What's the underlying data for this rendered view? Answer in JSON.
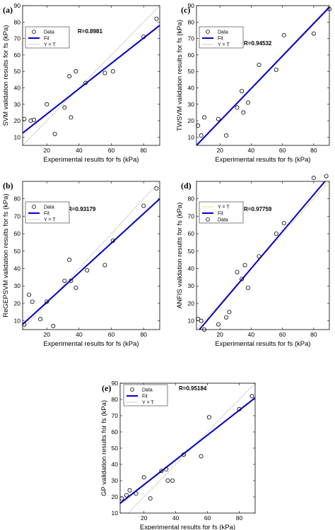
{
  "chart_data": [
    {
      "type": "scatter",
      "panel_letter": "(a)",
      "xlabel": "Experimental results for fs (kPa)",
      "ylabel": "SVM validation results for fs (kPa)",
      "xlim": [
        5,
        90
      ],
      "ylim": [
        5,
        90
      ],
      "xticks": [
        20,
        40,
        60,
        80
      ],
      "yticks": [
        10,
        20,
        30,
        40,
        50,
        60,
        70,
        80,
        90
      ],
      "r_text": "R=0.8981",
      "legend": [
        "Data",
        "Fit",
        "Y = T"
      ],
      "legend_position": "top-left",
      "fit": [
        [
          5,
          12.5
        ],
        [
          90,
          78
        ]
      ],
      "points": [
        [
          6,
          21
        ],
        [
          10,
          20
        ],
        [
          12,
          20.5
        ],
        [
          20,
          30
        ],
        [
          25,
          12
        ],
        [
          31,
          28
        ],
        [
          34,
          47
        ],
        [
          35,
          22
        ],
        [
          38,
          50
        ],
        [
          44,
          43
        ],
        [
          56,
          49
        ],
        [
          61,
          50
        ],
        [
          80,
          71
        ],
        [
          88,
          82
        ]
      ]
    },
    {
      "type": "scatter",
      "panel_letter": "(c)",
      "xlabel": "Experimental results for fs (kPa)",
      "ylabel": "TWSVM validation results for fs (kPa)",
      "xlim": [
        5,
        90
      ],
      "ylim": [
        5,
        90
      ],
      "xticks": [
        20,
        40,
        60,
        80
      ],
      "yticks": [
        10,
        20,
        30,
        40,
        50,
        60,
        70,
        80,
        90
      ],
      "r_text": "R=0.94532",
      "legend": [
        "Data",
        "Fit",
        "Y = T"
      ],
      "legend_position": "top-left",
      "fit": [
        [
          5,
          5
        ],
        [
          90,
          89
        ]
      ],
      "points": [
        [
          6,
          17
        ],
        [
          8,
          11
        ],
        [
          10,
          22
        ],
        [
          19,
          21
        ],
        [
          24,
          11
        ],
        [
          31,
          28
        ],
        [
          34,
          38
        ],
        [
          35,
          25
        ],
        [
          38,
          31
        ],
        [
          45,
          54
        ],
        [
          56,
          51
        ],
        [
          61,
          72
        ],
        [
          80,
          73
        ],
        [
          90,
          88
        ]
      ]
    },
    {
      "type": "scatter",
      "panel_letter": "(b)",
      "xlabel": "Experimental results for fs (kPa)",
      "ylabel": "ReGEPSVM validation results for fs (kPa)",
      "xlim": [
        5,
        90
      ],
      "ylim": [
        5,
        90
      ],
      "xticks": [
        20,
        40,
        60,
        80
      ],
      "yticks": [
        10,
        20,
        30,
        40,
        50,
        60,
        70,
        80
      ],
      "r_text": "R=0.93179",
      "legend": [
        "Data",
        "Fit",
        "Y = T"
      ],
      "legend_position": "top-left",
      "fit": [
        [
          5,
          8
        ],
        [
          90,
          80
        ]
      ],
      "points": [
        [
          6,
          8
        ],
        [
          9,
          25
        ],
        [
          11,
          21
        ],
        [
          16,
          11
        ],
        [
          20,
          21
        ],
        [
          24,
          7
        ],
        [
          31,
          33
        ],
        [
          34,
          45
        ],
        [
          35,
          33
        ],
        [
          38,
          29
        ],
        [
          45,
          39
        ],
        [
          56,
          42
        ],
        [
          61,
          56
        ],
        [
          80,
          76
        ],
        [
          88,
          86
        ]
      ]
    },
    {
      "type": "scatter",
      "panel_letter": "(d)",
      "xlabel": "Experimental results for fs (kPa)",
      "ylabel": "ANFIS validation results for fs (kPa)",
      "xlim": [
        5,
        90
      ],
      "ylim": [
        5,
        90
      ],
      "xticks": [
        20,
        40,
        60,
        80
      ],
      "yticks": [
        10,
        20,
        30,
        40,
        50,
        60,
        70,
        80
      ],
      "r_text": "R=0.97759",
      "legend": [
        "Y = T",
        "Fit",
        "Data"
      ],
      "legend_position": "top-left",
      "fit": [
        [
          5,
          3
        ],
        [
          90,
          93
        ]
      ],
      "points": [
        [
          6,
          11
        ],
        [
          8,
          10
        ],
        [
          10,
          5
        ],
        [
          19,
          8
        ],
        [
          24,
          12
        ],
        [
          26,
          15
        ],
        [
          31,
          38
        ],
        [
          34,
          34
        ],
        [
          36,
          42
        ],
        [
          38,
          29
        ],
        [
          45,
          47
        ],
        [
          56,
          60
        ],
        [
          61,
          66
        ],
        [
          80,
          92
        ],
        [
          88,
          93
        ]
      ]
    },
    {
      "type": "scatter",
      "panel_letter": "(e)",
      "xlabel": "Experimental results for fs (kPa)",
      "ylabel": "GP validation results for fs (kPa)",
      "xlim": [
        5,
        90
      ],
      "ylim": [
        10,
        90
      ],
      "xticks": [
        20,
        40,
        60,
        80
      ],
      "yticks": [
        10,
        20,
        30,
        40,
        50,
        60,
        70,
        80,
        90
      ],
      "r_text": "R=0.95184",
      "legend": [
        "Data",
        "Fit",
        "Y = T"
      ],
      "legend_position": "top-left",
      "fit": [
        [
          5,
          16
        ],
        [
          90,
          81
        ]
      ],
      "points": [
        [
          6,
          19
        ],
        [
          9,
          21
        ],
        [
          11,
          24
        ],
        [
          15,
          22
        ],
        [
          20,
          32
        ],
        [
          24,
          19
        ],
        [
          31,
          36
        ],
        [
          34,
          37
        ],
        [
          35,
          30
        ],
        [
          38,
          30
        ],
        [
          45,
          46
        ],
        [
          56,
          45
        ],
        [
          61,
          69
        ],
        [
          80,
          74
        ],
        [
          88,
          82
        ]
      ]
    }
  ]
}
